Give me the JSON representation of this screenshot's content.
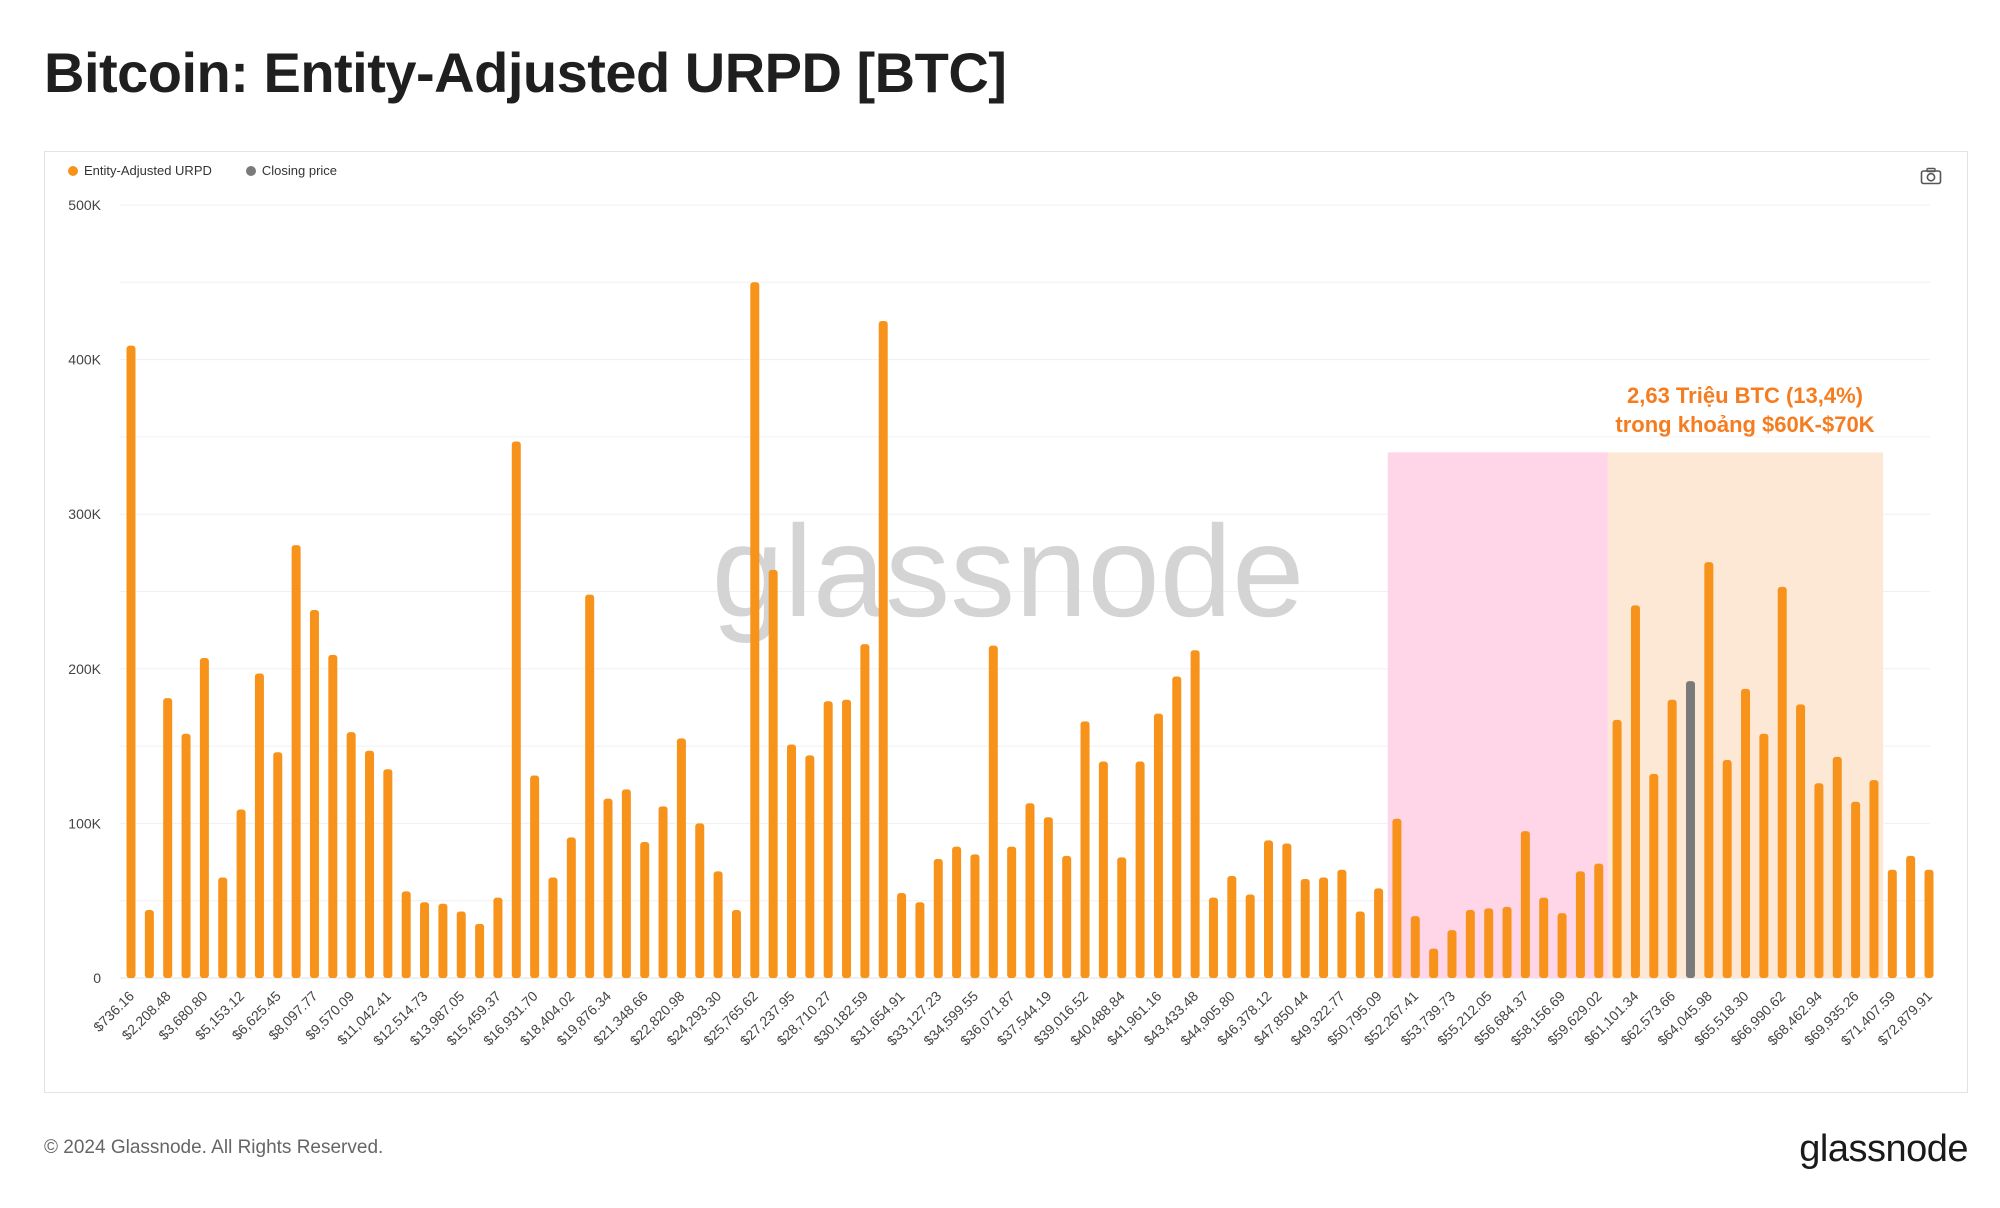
{
  "title": "Bitcoin: Entity-Adjusted URPD [BTC]",
  "legend": [
    {
      "label": "Entity-Adjusted URPD",
      "color": "#f7931a"
    },
    {
      "label": "Closing price",
      "color": "#7a7a7a"
    }
  ],
  "watermark": "glassnode",
  "footer": {
    "copyright": "© 2024 Glassnode. All Rights Reserved.",
    "logo": "glassnode"
  },
  "chart_data": {
    "type": "bar",
    "ylim": [
      0,
      500000
    ],
    "yticks": [
      {
        "value": 0,
        "label": "0"
      },
      {
        "value": 100000,
        "label": "100K"
      },
      {
        "value": 200000,
        "label": "200K"
      },
      {
        "value": 300000,
        "label": "300K"
      },
      {
        "value": 400000,
        "label": "400K"
      },
      {
        "value": 500000,
        "label": "500K"
      }
    ],
    "grid": true,
    "legend_position": "top-left",
    "bar_color": "#f7931a",
    "highlight_color": "#7a7a7a",
    "highlight_index": 85,
    "tick_labels": [
      {
        "index": 0,
        "label": "$736.16"
      },
      {
        "index": 2,
        "label": "$2,208.48"
      },
      {
        "index": 4,
        "label": "$3,680.80"
      },
      {
        "index": 6,
        "label": "$5,153.12"
      },
      {
        "index": 8,
        "label": "$6,625.45"
      },
      {
        "index": 10,
        "label": "$8,097.77"
      },
      {
        "index": 12,
        "label": "$9,570.09"
      },
      {
        "index": 14,
        "label": "$11,042.41"
      },
      {
        "index": 16,
        "label": "$12,514.73"
      },
      {
        "index": 18,
        "label": "$13,987.05"
      },
      {
        "index": 20,
        "label": "$15,459.37"
      },
      {
        "index": 22,
        "label": "$16,931.70"
      },
      {
        "index": 24,
        "label": "$18,404.02"
      },
      {
        "index": 26,
        "label": "$19,876.34"
      },
      {
        "index": 28,
        "label": "$21,348.66"
      },
      {
        "index": 30,
        "label": "$22,820.98"
      },
      {
        "index": 32,
        "label": "$24,293.30"
      },
      {
        "index": 34,
        "label": "$25,765.62"
      },
      {
        "index": 36,
        "label": "$27,237.95"
      },
      {
        "index": 38,
        "label": "$28,710.27"
      },
      {
        "index": 40,
        "label": "$30,182.59"
      },
      {
        "index": 42,
        "label": "$31,654.91"
      },
      {
        "index": 44,
        "label": "$33,127.23"
      },
      {
        "index": 46,
        "label": "$34,599.55"
      },
      {
        "index": 48,
        "label": "$36,071.87"
      },
      {
        "index": 50,
        "label": "$37,544.19"
      },
      {
        "index": 52,
        "label": "$39,016.52"
      },
      {
        "index": 54,
        "label": "$40,488.84"
      },
      {
        "index": 56,
        "label": "$41,961.16"
      },
      {
        "index": 58,
        "label": "$43,433.48"
      },
      {
        "index": 60,
        "label": "$44,905.80"
      },
      {
        "index": 62,
        "label": "$46,378.12"
      },
      {
        "index": 64,
        "label": "$47,850.44"
      },
      {
        "index": 66,
        "label": "$49,322.77"
      },
      {
        "index": 68,
        "label": "$50,795.09"
      },
      {
        "index": 70,
        "label": "$52,267.41"
      },
      {
        "index": 72,
        "label": "$53,739.73"
      },
      {
        "index": 74,
        "label": "$55,212.05"
      },
      {
        "index": 76,
        "label": "$56,684.37"
      },
      {
        "index": 78,
        "label": "$58,156.69"
      },
      {
        "index": 80,
        "label": "$59,629.02"
      },
      {
        "index": 82,
        "label": "$61,101.34"
      },
      {
        "index": 84,
        "label": "$62,573.66"
      },
      {
        "index": 86,
        "label": "$64,045.98"
      },
      {
        "index": 88,
        "label": "$65,518.30"
      },
      {
        "index": 90,
        "label": "$66,990.62"
      },
      {
        "index": 92,
        "label": "$68,462.94"
      },
      {
        "index": 94,
        "label": "$69,935.26"
      },
      {
        "index": 96,
        "label": "$71,407.59"
      },
      {
        "index": 98,
        "label": "$72,879.91"
      }
    ],
    "values": [
      409000,
      44000,
      181000,
      158000,
      207000,
      65000,
      109000,
      197000,
      146000,
      280000,
      238000,
      209000,
      159000,
      147000,
      135000,
      56000,
      49000,
      48000,
      43000,
      35000,
      52000,
      347000,
      131000,
      65000,
      91000,
      248000,
      116000,
      122000,
      88000,
      111000,
      155000,
      100000,
      69000,
      44000,
      450000,
      264000,
      151000,
      144000,
      179000,
      180000,
      216000,
      425000,
      55000,
      49000,
      77000,
      85000,
      80000,
      215000,
      85000,
      113000,
      104000,
      79000,
      166000,
      140000,
      78000,
      140000,
      171000,
      195000,
      212000,
      52000,
      66000,
      54000,
      89000,
      87000,
      64000,
      65000,
      70000,
      43000,
      58000,
      103000,
      40000,
      19000,
      31000,
      44000,
      45000,
      46000,
      95000,
      52000,
      42000,
      69000,
      74000,
      167000,
      241000,
      132000,
      180000,
      192000,
      269000,
      141000,
      187000,
      158000,
      253000,
      177000,
      126000,
      143000,
      114000,
      128000,
      70000,
      79000,
      70000
    ],
    "regions": [
      {
        "from_index": 69,
        "to_index": 80,
        "to_value": 340000,
        "color": "#ffd6e8"
      },
      {
        "from_index": 81,
        "to_index": 95,
        "to_value": 340000,
        "color": "#fde8d6"
      }
    ],
    "annotation": {
      "lines": [
        "2,63 Triệu BTC (13,4%)",
        "trong khoảng $60K-$70K"
      ],
      "color": "#f57c1f"
    }
  }
}
